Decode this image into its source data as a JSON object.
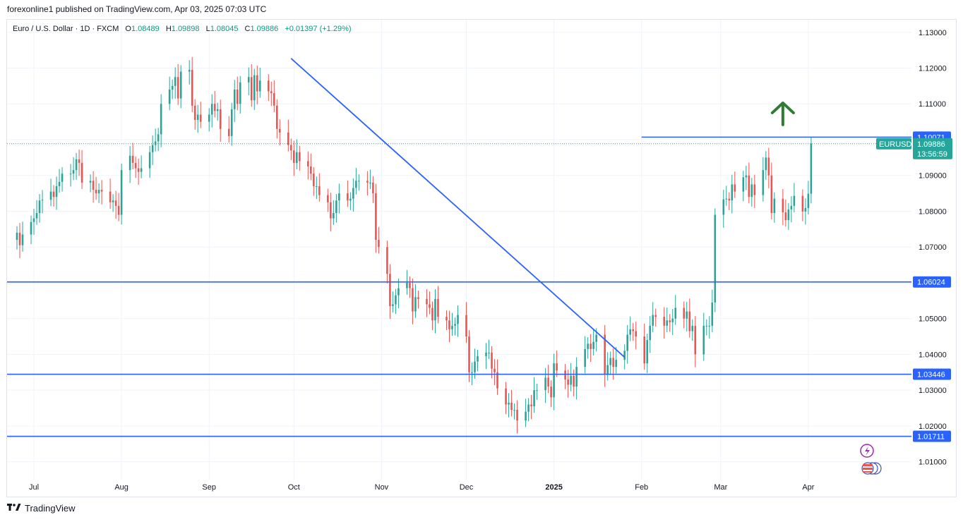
{
  "caption": "forexonline1 published on TradingView.com, Apr 03, 2025 07:03 UTC",
  "legend": {
    "symbol": "Euro / U.S. Dollar · 1D · FXCM",
    "o_label": "O",
    "o": "1.08489",
    "h_label": "H",
    "h": "1.09898",
    "l_label": "L",
    "l": "1.08045",
    "c_label": "C",
    "c": "1.09886",
    "change": "+0.01397 (+1.29%)"
  },
  "footer": {
    "brand": "TradingView"
  },
  "colors": {
    "up": "#26a69a",
    "down": "#ef5350",
    "line": "#2962ff",
    "arrow": "#2e7d32",
    "grid": "#f0f3fa"
  },
  "chart_data": {
    "type": "candlestick",
    "title": "Euro / U.S. Dollar · 1D · FXCM",
    "ylim": [
      1.005,
      1.1335
    ],
    "y_ticks": [
      "1.13000",
      "1.12000",
      "1.11000",
      "1.10000",
      "1.09000",
      "1.08000",
      "1.07000",
      "1.06000",
      "1.05000",
      "1.04000",
      "1.03000",
      "1.02000",
      "1.01000"
    ],
    "x_labels": [
      {
        "label": "Jul",
        "day": 18
      },
      {
        "label": "Aug",
        "day": 49
      },
      {
        "label": "Sep",
        "day": 80
      },
      {
        "label": "Oct",
        "day": 110
      },
      {
        "label": "Nov",
        "day": 141
      },
      {
        "label": "Dec",
        "day": 171
      },
      {
        "label": "2025",
        "day": 202,
        "bold": true
      },
      {
        "label": "Feb",
        "day": 233
      },
      {
        "label": "Mar",
        "day": 261
      },
      {
        "label": "Apr",
        "day": 292
      }
    ],
    "day_range": [
      12,
      325
    ],
    "horizontal_levels": [
      {
        "value": 1.06024,
        "label": "1.06024"
      },
      {
        "value": 1.03446,
        "label": "1.03446"
      },
      {
        "value": 1.01711,
        "label": "1.01711"
      },
      {
        "value": 1.10071,
        "label": "1.10071",
        "from_day": 233
      }
    ],
    "trendline": {
      "from": {
        "day": 109,
        "value": 1.1227
      },
      "to": {
        "day": 227,
        "value": 1.0392
      }
    },
    "last_price": {
      "value": 1.09886,
      "symbol": "EURUSD",
      "price_label": "1.09886",
      "countdown": "13:56:59"
    },
    "arrow": {
      "day": 283,
      "value": 1.1075,
      "direction": "up"
    },
    "closes": [
      [
        12,
        1.074
      ],
      [
        13,
        1.0705
      ],
      [
        14,
        1.0735
      ],
      [
        17,
        1.077
      ],
      [
        18,
        1.078
      ],
      [
        19,
        1.0795
      ],
      [
        20,
        1.083
      ],
      [
        21,
        1.0832
      ],
      [
        24,
        1.0855
      ],
      [
        25,
        1.084
      ],
      [
        26,
        1.087
      ],
      [
        27,
        1.0882
      ],
      [
        28,
        1.0905
      ],
      [
        31,
        1.0905
      ],
      [
        32,
        1.0915
      ],
      [
        33,
        1.0945
      ],
      [
        34,
        1.0935
      ],
      [
        35,
        1.088
      ],
      [
        38,
        1.0885
      ],
      [
        39,
        1.086
      ],
      [
        40,
        1.085
      ],
      [
        41,
        1.086
      ],
      [
        42,
        1.0855
      ],
      [
        45,
        1.0825
      ],
      [
        46,
        1.083
      ],
      [
        47,
        1.0815
      ],
      [
        48,
        1.079
      ],
      [
        49,
        1.0915
      ],
      [
        52,
        1.0955
      ],
      [
        53,
        1.0935
      ],
      [
        54,
        1.092
      ],
      [
        55,
        1.091
      ],
      [
        56,
        1.092
      ],
      [
        59,
        1.0965
      ],
      [
        60,
        1.0985
      ],
      [
        61,
        1.0995
      ],
      [
        62,
        1.1015
      ],
      [
        63,
        1.11
      ],
      [
        66,
        1.114
      ],
      [
        67,
        1.115
      ],
      [
        68,
        1.1175
      ],
      [
        69,
        1.1115
      ],
      [
        70,
        1.119
      ],
      [
        73,
        1.1195
      ],
      [
        74,
        1.1095
      ],
      [
        75,
        1.1055
      ],
      [
        76,
        1.107
      ],
      [
        77,
        1.105
      ],
      [
        80,
        1.107
      ],
      [
        81,
        1.11
      ],
      [
        82,
        1.108
      ],
      [
        83,
        1.1085
      ],
      [
        84,
        1.103
      ],
      [
        87,
        1.101
      ],
      [
        88,
        1.1085
      ],
      [
        89,
        1.114
      ],
      [
        90,
        1.11
      ],
      [
        91,
        1.116
      ],
      [
        94,
        1.1175
      ],
      [
        95,
        1.111
      ],
      [
        96,
        1.118
      ],
      [
        97,
        1.1135
      ],
      [
        98,
        1.1165
      ],
      [
        101,
        1.1135
      ],
      [
        102,
        1.113
      ],
      [
        103,
        1.1095
      ],
      [
        104,
        1.103
      ],
      [
        105,
        1.102
      ],
      [
        108,
        1.0985
      ],
      [
        109,
        1.097
      ],
      [
        110,
        1.0935
      ],
      [
        111,
        1.0965
      ],
      [
        112,
        1.094
      ],
      [
        115,
        1.0925
      ],
      [
        116,
        1.0905
      ],
      [
        117,
        1.087
      ],
      [
        118,
        1.087
      ],
      [
        119,
        1.0845
      ],
      [
        122,
        1.0825
      ],
      [
        123,
        1.078
      ],
      [
        124,
        1.0795
      ],
      [
        125,
        1.083
      ],
      [
        126,
        1.085
      ],
      [
        129,
        1.083
      ],
      [
        130,
        1.0835
      ],
      [
        131,
        1.0865
      ],
      [
        132,
        1.0885
      ],
      [
        133,
        1.0885
      ],
      [
        136,
        1.088
      ],
      [
        137,
        1.088
      ],
      [
        138,
        1.085
      ],
      [
        139,
        1.072
      ],
      [
        140,
        1.07
      ],
      [
        143,
        1.0625
      ],
      [
        144,
        1.0535
      ],
      [
        145,
        1.054
      ],
      [
        146,
        1.0565
      ],
      [
        147,
        1.0585
      ],
      [
        150,
        1.06
      ],
      [
        151,
        1.0585
      ],
      [
        152,
        1.052
      ],
      [
        153,
        1.056
      ],
      [
        154,
        1.0555
      ],
      [
        157,
        1.054
      ],
      [
        158,
        1.053
      ],
      [
        159,
        1.0495
      ],
      [
        160,
        1.0555
      ],
      [
        161,
        1.0505
      ],
      [
        164,
        1.0495
      ],
      [
        165,
        1.047
      ],
      [
        166,
        1.048
      ],
      [
        167,
        1.0485
      ],
      [
        168,
        1.051
      ],
      [
        171,
        1.045
      ],
      [
        172,
        1.035
      ],
      [
        173,
        1.035
      ],
      [
        174,
        1.038
      ],
      [
        175,
        1.0395
      ],
      [
        178,
        1.0405
      ],
      [
        179,
        1.0405
      ],
      [
        180,
        1.036
      ],
      [
        181,
        1.035
      ],
      [
        182,
        1.0305
      ],
      [
        185,
        1.026
      ],
      [
        186,
        1.0265
      ],
      [
        187,
        1.0245
      ],
      [
        188,
        1.0245
      ],
      [
        189,
        1.0215
      ],
      [
        192,
        1.024
      ],
      [
        193,
        1.026
      ],
      [
        194,
        1.0255
      ],
      [
        195,
        1.03
      ],
      [
        196,
        1.03
      ],
      [
        199,
        1.0335
      ],
      [
        200,
        1.031
      ],
      [
        201,
        1.028
      ],
      [
        202,
        1.0375
      ],
      [
        203,
        1.0355
      ],
      [
        206,
        1.033
      ],
      [
        207,
        1.0315
      ],
      [
        208,
        1.034
      ],
      [
        209,
        1.031
      ],
      [
        210,
        1.0365
      ],
      [
        213,
        1.0415
      ],
      [
        214,
        1.043
      ],
      [
        215,
        1.0415
      ],
      [
        216,
        1.0435
      ],
      [
        217,
        1.0455
      ],
      [
        220,
        1.0345
      ],
      [
        221,
        1.037
      ],
      [
        222,
        1.039
      ],
      [
        223,
        1.0365
      ],
      [
        224,
        1.0385
      ],
      [
        227,
        1.041
      ],
      [
        228,
        1.0455
      ],
      [
        229,
        1.047
      ],
      [
        230,
        1.0465
      ],
      [
        231,
        1.045
      ],
      [
        234,
        1.0375
      ],
      [
        235,
        1.044
      ],
      [
        236,
        1.048
      ],
      [
        237,
        1.051
      ],
      [
        238,
        1.0505
      ],
      [
        241,
        1.048
      ],
      [
        242,
        1.0495
      ],
      [
        243,
        1.049
      ],
      [
        244,
        1.05
      ],
      [
        245,
        1.053
      ],
      [
        248,
        1.05
      ],
      [
        249,
        1.052
      ],
      [
        250,
        1.0465
      ],
      [
        251,
        1.048
      ],
      [
        252,
        1.04
      ],
      [
        255,
        1.048
      ],
      [
        256,
        1.048
      ],
      [
        257,
        1.048
      ],
      [
        258,
        1.0545
      ],
      [
        259,
        1.079
      ],
      [
        262,
        1.0833
      ],
      [
        263,
        1.0835
      ],
      [
        264,
        1.083
      ],
      [
        265,
        1.0875
      ],
      [
        266,
        1.0855
      ],
      [
        269,
        1.0895
      ],
      [
        270,
        1.09
      ],
      [
        271,
        1.084
      ],
      [
        272,
        1.0875
      ],
      [
        273,
        1.0845
      ],
      [
        276,
        1.0915
      ],
      [
        277,
        1.095
      ],
      [
        278,
        1.09
      ],
      [
        279,
        1.0795
      ],
      [
        280,
        1.0835
      ],
      [
        283,
        1.0797
      ],
      [
        284,
        1.0775
      ],
      [
        285,
        1.0805
      ],
      [
        286,
        1.0815
      ],
      [
        287,
        1.0843
      ],
      [
        290,
        1.0799
      ],
      [
        291,
        1.0809
      ],
      [
        292,
        1.0849
      ],
      [
        293,
        1.0989
      ]
    ]
  }
}
